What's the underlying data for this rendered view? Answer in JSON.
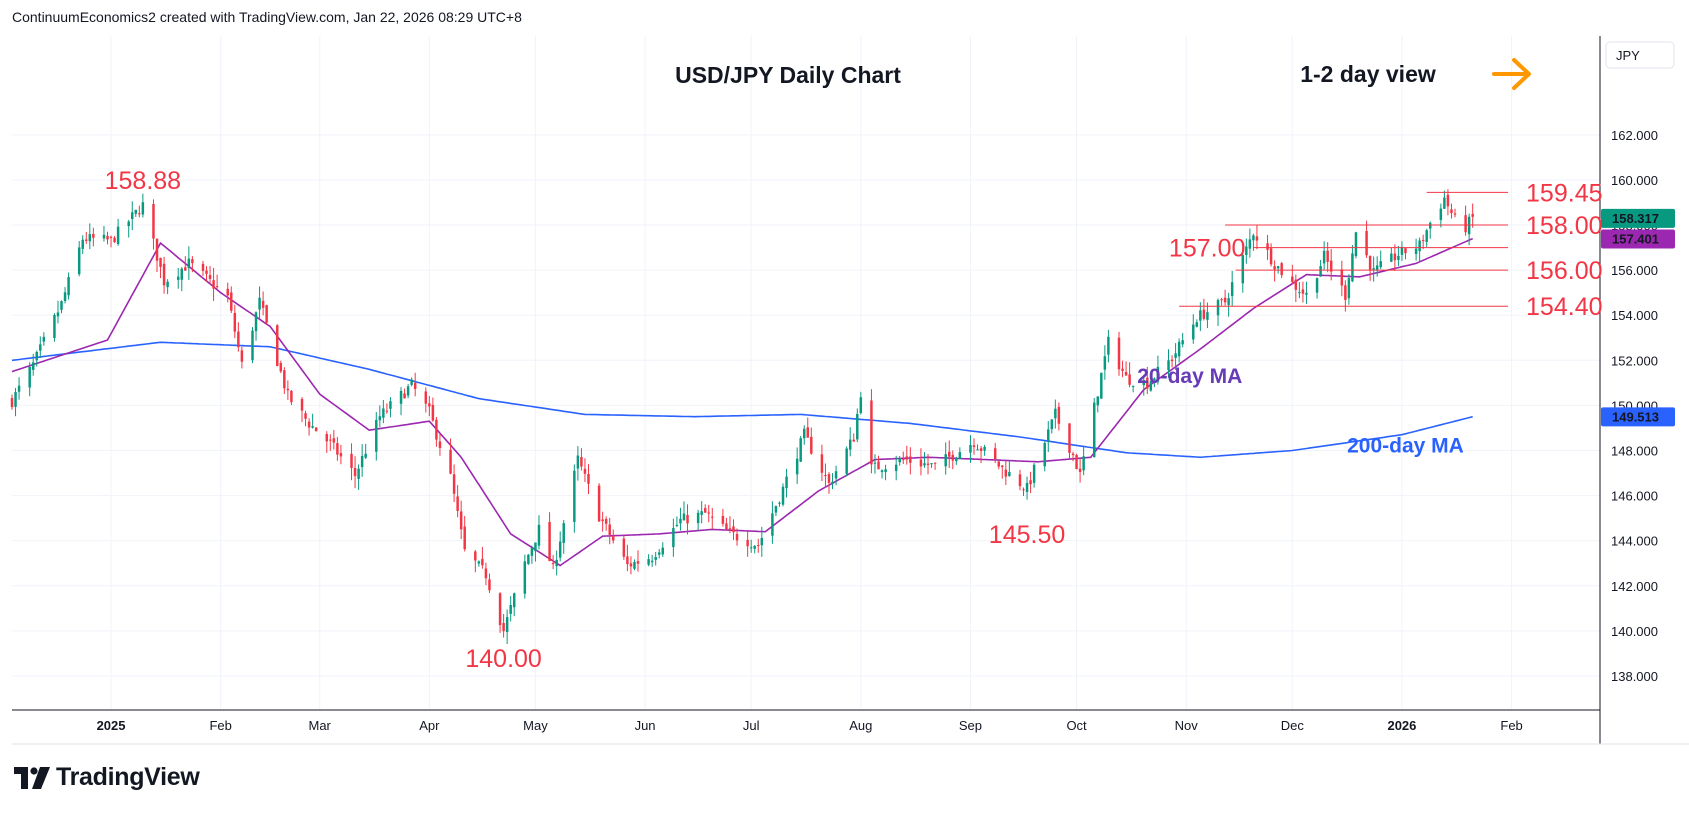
{
  "header": {
    "credit": "ContinuumEconomics2 created with TradingView.com, Jan 22, 2026 08:29 UTC+8"
  },
  "brand": {
    "name": "TradingView",
    "logo_icon": "tradingview-logo-icon"
  },
  "chart_data": {
    "type": "candlestick",
    "title": "USD/JPY Daily Chart",
    "subtitle": "1-2 day view",
    "subtitle_icon": "arrow-right-icon",
    "currency": "JPY",
    "ylim": [
      136.8,
      164.3
    ],
    "y_ticks": [
      "162.000",
      "160.000",
      "158.000",
      "156.000",
      "154.000",
      "152.000",
      "150.000",
      "148.000",
      "146.000",
      "144.000",
      "142.000",
      "140.000",
      "138.000"
    ],
    "x_labels": [
      {
        "label": "2025",
        "date": "2025-01-01",
        "bold": true
      },
      {
        "label": "Feb",
        "date": "2025-02-01",
        "bold": false
      },
      {
        "label": "Mar",
        "date": "2025-03-01",
        "bold": false
      },
      {
        "label": "Apr",
        "date": "2025-04-01",
        "bold": false
      },
      {
        "label": "May",
        "date": "2025-05-01",
        "bold": false
      },
      {
        "label": "Jun",
        "date": "2025-06-01",
        "bold": false
      },
      {
        "label": "Jul",
        "date": "2025-07-01",
        "bold": false
      },
      {
        "label": "Aug",
        "date": "2025-08-01",
        "bold": false
      },
      {
        "label": "Sep",
        "date": "2025-09-01",
        "bold": false
      },
      {
        "label": "Oct",
        "date": "2025-10-01",
        "bold": false
      },
      {
        "label": "Nov",
        "date": "2025-11-01",
        "bold": false
      },
      {
        "label": "Dec",
        "date": "2025-12-01",
        "bold": false
      },
      {
        "label": "2026",
        "date": "2026-01-01",
        "bold": true
      },
      {
        "label": "Feb",
        "date": "2026-02-01",
        "bold": false
      }
    ],
    "x_start": "2024-12-04",
    "x_end": "2026-02-26",
    "key_path": [
      [
        "2024-12-04",
        150.2
      ],
      [
        "2024-12-10",
        151.8
      ],
      [
        "2024-12-18",
        154.5
      ],
      [
        "2024-12-24",
        157.4
      ],
      [
        "2025-01-01",
        157.3
      ],
      [
        "2025-01-10",
        158.88
      ],
      [
        "2025-01-16",
        155.5
      ],
      [
        "2025-01-23",
        156.3
      ],
      [
        "2025-02-03",
        154.8
      ],
      [
        "2025-02-07",
        151.8
      ],
      [
        "2025-02-12",
        154.6
      ],
      [
        "2025-02-20",
        150.4
      ],
      [
        "2025-02-26",
        149.2
      ],
      [
        "2025-03-04",
        148.3
      ],
      [
        "2025-03-11",
        146.9
      ],
      [
        "2025-03-18",
        149.5
      ],
      [
        "2025-03-27",
        150.9
      ],
      [
        "2025-04-01",
        149.7
      ],
      [
        "2025-04-07",
        146.8
      ],
      [
        "2025-04-11",
        143.5
      ],
      [
        "2025-04-17",
        142.5
      ],
      [
        "2025-04-22",
        140.0
      ],
      [
        "2025-04-28",
        143.0
      ],
      [
        "2025-05-02",
        144.5
      ],
      [
        "2025-05-06",
        142.7
      ],
      [
        "2025-05-13",
        147.6
      ],
      [
        "2025-05-19",
        145.1
      ],
      [
        "2025-05-27",
        142.9
      ],
      [
        "2025-06-03",
        143.3
      ],
      [
        "2025-06-11",
        144.9
      ],
      [
        "2025-06-18",
        145.2
      ],
      [
        "2025-06-25",
        144.3
      ],
      [
        "2025-06-30",
        144.0
      ],
      [
        "2025-07-03",
        143.8
      ],
      [
        "2025-07-10",
        146.3
      ],
      [
        "2025-07-16",
        148.7
      ],
      [
        "2025-07-23",
        146.5
      ],
      [
        "2025-07-30",
        148.6
      ],
      [
        "2025-08-01",
        150.6
      ],
      [
        "2025-08-04",
        147.2
      ],
      [
        "2025-08-13",
        147.6
      ],
      [
        "2025-08-22",
        147.3
      ],
      [
        "2025-09-02",
        148.4
      ],
      [
        "2025-09-10",
        147.2
      ],
      [
        "2025-09-17",
        146.3
      ],
      [
        "2025-09-25",
        149.6
      ],
      [
        "2025-09-30",
        147.8
      ],
      [
        "2025-10-02",
        146.9
      ],
      [
        "2025-10-06",
        149.9
      ],
      [
        "2025-10-10",
        152.8
      ],
      [
        "2025-10-15",
        151.2
      ],
      [
        "2025-10-21",
        151.0
      ],
      [
        "2025-10-28",
        152.1
      ],
      [
        "2025-11-04",
        153.9
      ],
      [
        "2025-11-12",
        154.6
      ],
      [
        "2025-11-20",
        157.7
      ],
      [
        "2025-11-26",
        156.3
      ],
      [
        "2025-12-01",
        155.4
      ],
      [
        "2025-12-05",
        154.9
      ],
      [
        "2025-12-10",
        156.6
      ],
      [
        "2025-12-16",
        154.9
      ],
      [
        "2025-12-19",
        157.7
      ],
      [
        "2025-12-24",
        155.9
      ],
      [
        "2025-12-31",
        156.7
      ],
      [
        "2026-01-06",
        157.1
      ],
      [
        "2026-01-09",
        158.1
      ],
      [
        "2026-01-13",
        159.2
      ],
      [
        "2026-01-16",
        158.2
      ],
      [
        "2026-01-19",
        157.9
      ],
      [
        "2026-01-21",
        158.3
      ]
    ],
    "ma20_path": [
      [
        "2024-12-04",
        151.5
      ],
      [
        "2024-12-31",
        152.9
      ],
      [
        "2025-01-15",
        157.2
      ],
      [
        "2025-02-01",
        155.0
      ],
      [
        "2025-02-15",
        153.5
      ],
      [
        "2025-03-01",
        150.5
      ],
      [
        "2025-03-15",
        148.9
      ],
      [
        "2025-04-01",
        149.3
      ],
      [
        "2025-04-10",
        147.7
      ],
      [
        "2025-04-24",
        144.3
      ],
      [
        "2025-05-08",
        142.9
      ],
      [
        "2025-05-20",
        144.2
      ],
      [
        "2025-06-05",
        144.3
      ],
      [
        "2025-06-20",
        144.5
      ],
      [
        "2025-07-05",
        144.4
      ],
      [
        "2025-07-20",
        146.2
      ],
      [
        "2025-08-05",
        147.6
      ],
      [
        "2025-08-20",
        147.7
      ],
      [
        "2025-09-05",
        147.6
      ],
      [
        "2025-09-20",
        147.5
      ],
      [
        "2025-10-05",
        147.7
      ],
      [
        "2025-10-20",
        150.7
      ],
      [
        "2025-11-05",
        152.5
      ],
      [
        "2025-11-20",
        154.3
      ],
      [
        "2025-12-05",
        155.8
      ],
      [
        "2025-12-20",
        155.7
      ],
      [
        "2026-01-05",
        156.3
      ],
      [
        "2026-01-21",
        157.4
      ]
    ],
    "ma200_path": [
      [
        "2024-12-04",
        152.0
      ],
      [
        "2025-01-15",
        152.8
      ],
      [
        "2025-02-15",
        152.6
      ],
      [
        "2025-03-15",
        151.6
      ],
      [
        "2025-04-15",
        150.3
      ],
      [
        "2025-05-15",
        149.6
      ],
      [
        "2025-06-15",
        149.5
      ],
      [
        "2025-07-15",
        149.6
      ],
      [
        "2025-08-15",
        149.2
      ],
      [
        "2025-09-15",
        148.6
      ],
      [
        "2025-10-15",
        147.9
      ],
      [
        "2025-11-05",
        147.7
      ],
      [
        "2025-12-01",
        148.0
      ],
      [
        "2026-01-01",
        148.7
      ],
      [
        "2026-01-21",
        149.5
      ]
    ],
    "levels": [
      {
        "value": 159.45,
        "label": "159.45",
        "from": "2026-01-08",
        "to": "2026-01-31"
      },
      {
        "value": 158.0,
        "label": "158.00",
        "from": "2025-11-12",
        "to": "2026-01-31"
      },
      {
        "value": 157.0,
        "label": "157.00",
        "from": "2025-11-20",
        "to": "2026-01-31"
      },
      {
        "value": 156.0,
        "label": "156.00",
        "from": "2025-11-15",
        "to": "2026-01-31"
      },
      {
        "value": 154.4,
        "label": "154.40",
        "from": "2025-10-30",
        "to": "2026-01-31"
      }
    ],
    "annotations": [
      {
        "text": "158.88",
        "date": "2025-01-10",
        "value": 158.88
      },
      {
        "text": "140.00",
        "date": "2025-04-22",
        "value": 140.0
      },
      {
        "text": "145.50",
        "date": "2025-09-17",
        "value": 145.5
      }
    ],
    "ma_labels": [
      {
        "text": "20-day MA",
        "color": "#673ab7"
      },
      {
        "text": "200-day MA",
        "color": "#2962ff"
      }
    ],
    "last_price": {
      "value": 158.317,
      "label": "158.317",
      "color": "#089981"
    },
    "ma20_last": {
      "value": 157.401,
      "label": "157.401",
      "color": "#9c27b0"
    },
    "ma200_last": {
      "value": 149.513,
      "label": "149.513",
      "color": "#2962ff"
    },
    "colors": {
      "up": "#089981",
      "down": "#f23645",
      "ma20": "#9c27b0",
      "ma200": "#2962ff",
      "level_line": "#f23645",
      "label_red": "#f23645",
      "arrow": "#ff9800",
      "grid": "#f0f3fa"
    }
  }
}
